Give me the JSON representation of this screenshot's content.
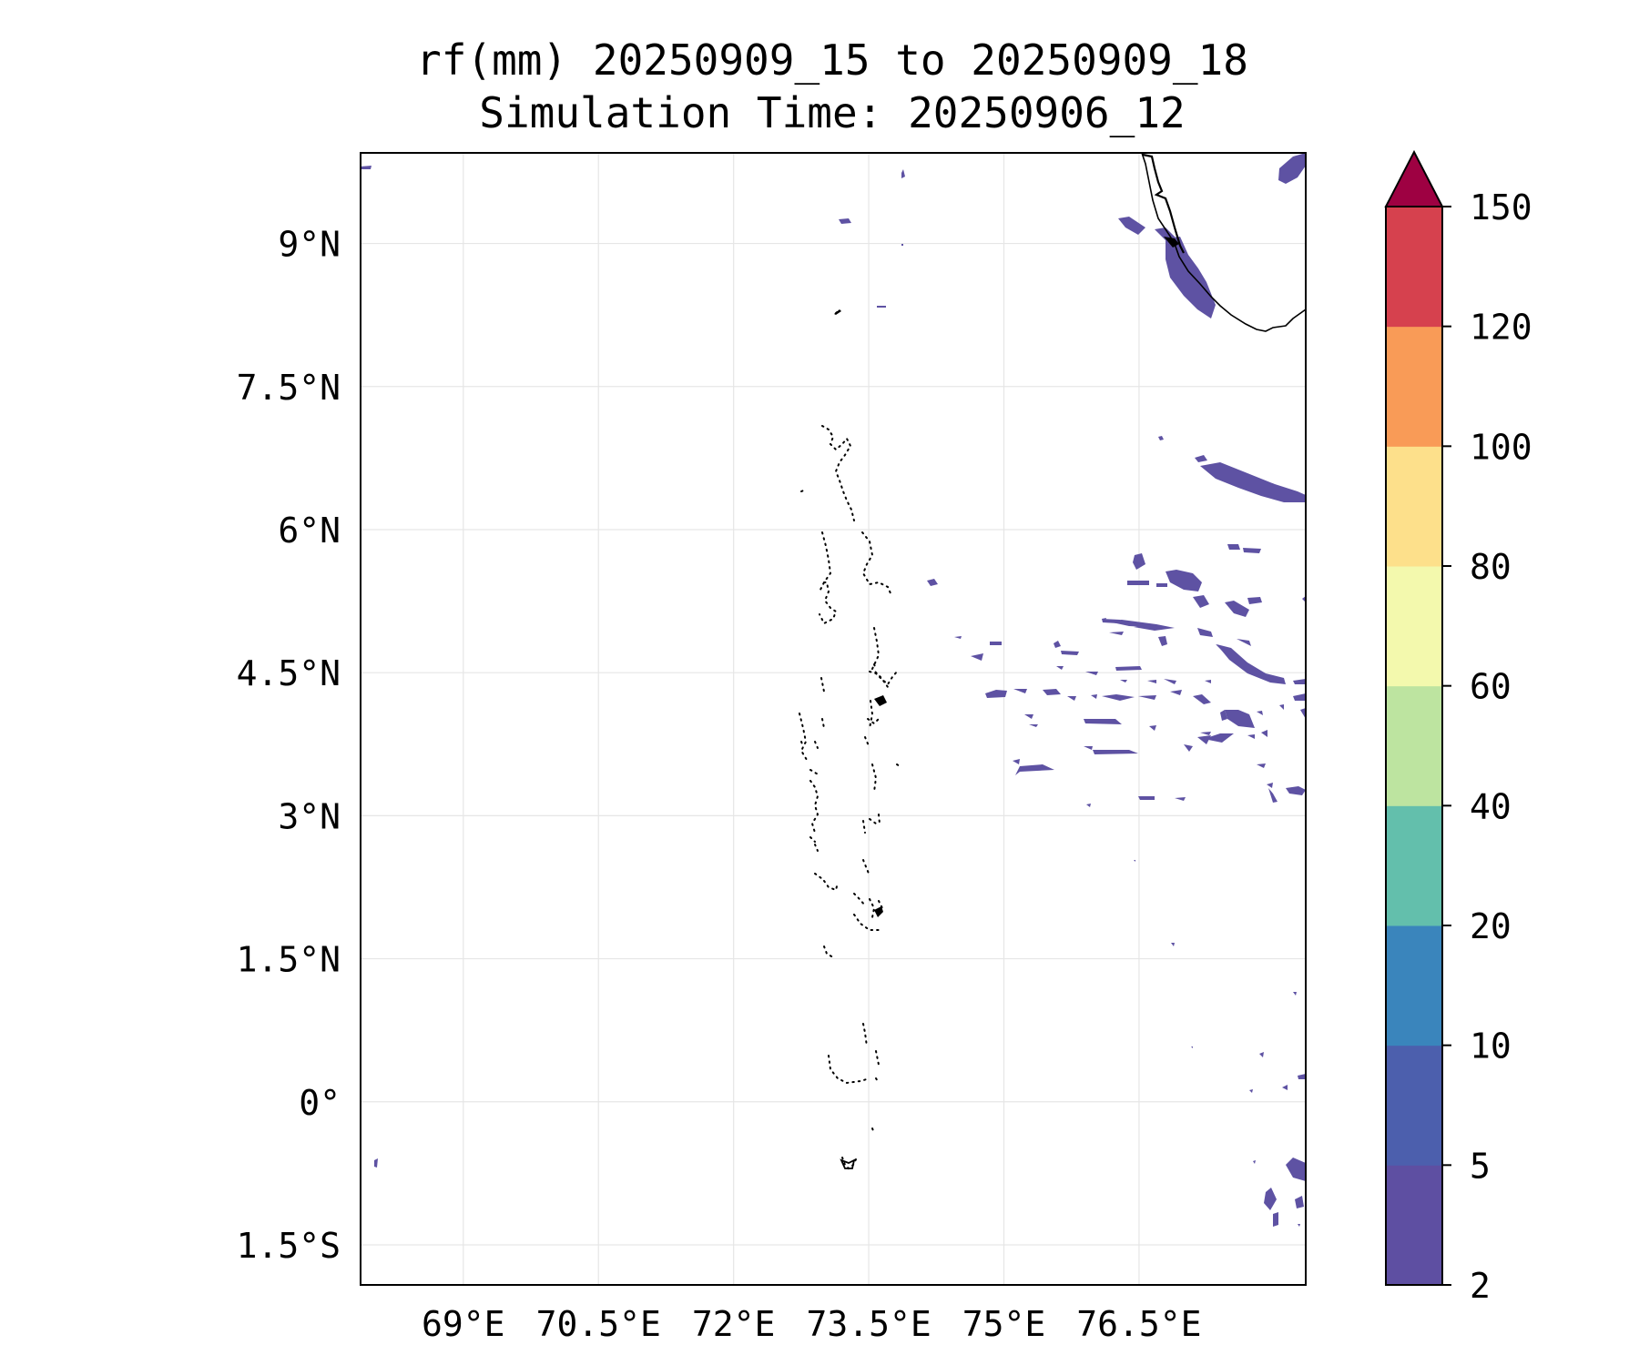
{
  "map": {
    "title_line1": "rf(mm) 20250909_15 to 20250909_18",
    "title_line2": "Simulation Time: 20250906_12",
    "lon_range": [
      67.86,
      78.35
    ],
    "lat_range": [
      -1.92,
      9.95
    ],
    "lon_ticks": [
      {
        "value": 69.0,
        "label": "69°E"
      },
      {
        "value": 70.5,
        "label": "70.5°E"
      },
      {
        "value": 72.0,
        "label": "72°E"
      },
      {
        "value": 73.5,
        "label": "73.5°E"
      },
      {
        "value": 75.0,
        "label": "75°E"
      },
      {
        "value": 76.5,
        "label": "76.5°E"
      }
    ],
    "lat_ticks": [
      {
        "value": 9.0,
        "label": "9°N"
      },
      {
        "value": 7.5,
        "label": "7.5°N"
      },
      {
        "value": 6.0,
        "label": "6°N"
      },
      {
        "value": 4.5,
        "label": "4.5°N"
      },
      {
        "value": 3.0,
        "label": "3°N"
      },
      {
        "value": 1.5,
        "label": "1.5°N"
      },
      {
        "value": 0.0,
        "label": "0°"
      },
      {
        "value": -1.5,
        "label": "1.5°S"
      }
    ],
    "grid": true,
    "rain_color": "#5e52a3",
    "coast_color": "#000000",
    "colorbar": {
      "extend": "max",
      "extend_color": "#9e0142",
      "levels": [
        {
          "label": "2",
          "color": "#5e4fa2"
        },
        {
          "label": "5",
          "color": "#4c5fad"
        },
        {
          "label": "10",
          "color": "#3a85bc"
        },
        {
          "label": "20",
          "color": "#63bfac"
        },
        {
          "label": "40",
          "color": "#bde4a0"
        },
        {
          "label": "60",
          "color": "#f3f9ad"
        },
        {
          "label": "80",
          "color": "#fde08b"
        },
        {
          "label": "100",
          "color": "#f99b57"
        },
        {
          "label": "120",
          "color": "#d6414e"
        },
        {
          "label": "150",
          "color": ""
        }
      ]
    }
  }
}
